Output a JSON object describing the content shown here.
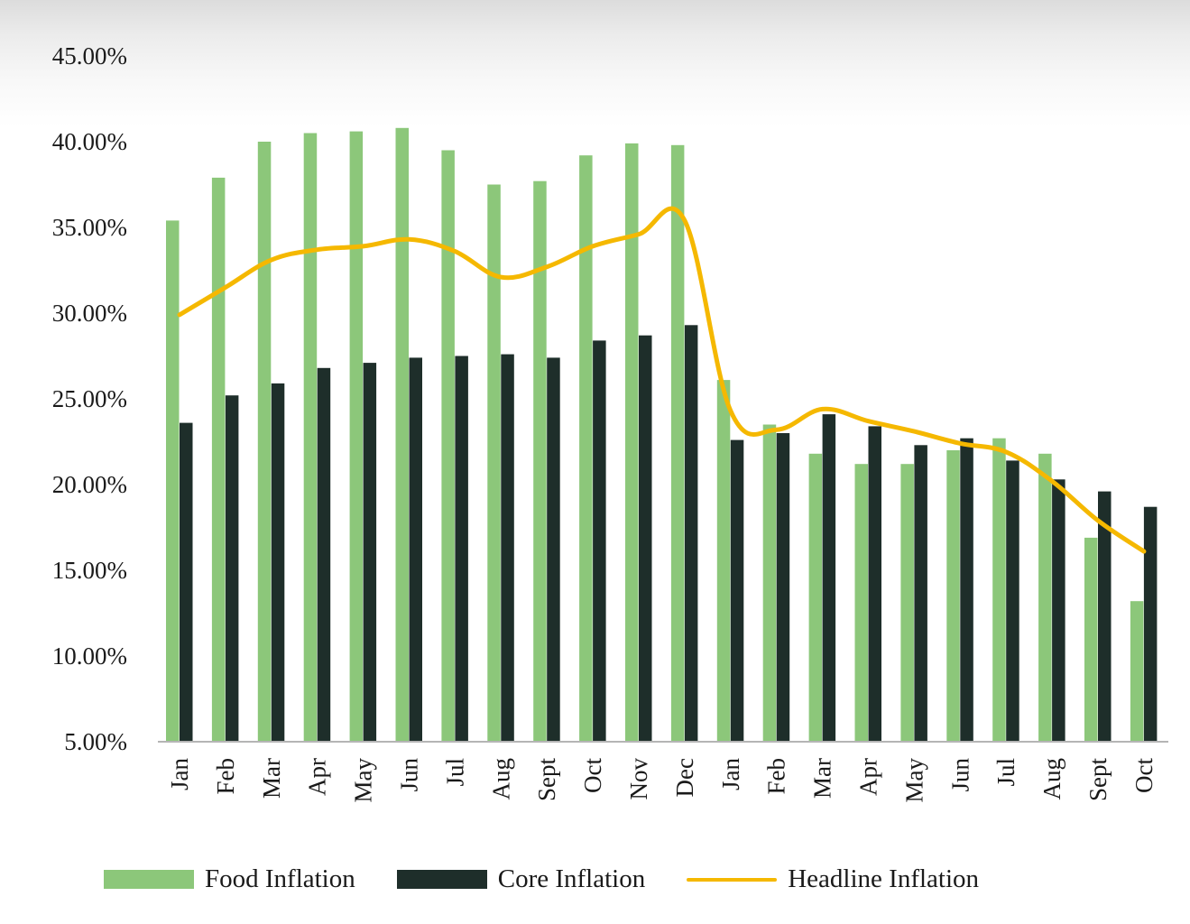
{
  "chart_data": {
    "type": "bar",
    "title": "",
    "xlabel": "",
    "ylabel": "",
    "ylim": [
      5,
      45
    ],
    "yticks": [
      "5.00%",
      "10.00%",
      "15.00%",
      "20.00%",
      "25.00%",
      "30.00%",
      "35.00%",
      "40.00%",
      "45.00%"
    ],
    "ytick_values": [
      5,
      10,
      15,
      20,
      25,
      30,
      35,
      40,
      45
    ],
    "grid": false,
    "legend_position": "bottom",
    "categories": [
      "Jan",
      "Feb",
      "Mar",
      "Apr",
      "May",
      "Jun",
      "Jul",
      "Aug",
      "Sept",
      "Oct",
      "Nov",
      "Dec",
      "Jan",
      "Feb",
      "Mar",
      "Apr",
      "May",
      "Jun",
      "Jul",
      "Aug",
      "Sept",
      "Oct"
    ],
    "series": [
      {
        "name": "Food Inflation",
        "type": "bar",
        "color": "#8cc77a",
        "values": [
          35.4,
          37.9,
          40.0,
          40.5,
          40.6,
          40.8,
          39.5,
          37.5,
          37.7,
          39.2,
          39.9,
          39.8,
          26.1,
          23.5,
          21.8,
          21.2,
          21.2,
          22.0,
          22.7,
          21.8,
          16.9,
          13.2
        ]
      },
      {
        "name": "Core Inflation",
        "type": "bar",
        "color": "#1e2e2a",
        "values": [
          23.6,
          25.2,
          25.9,
          26.8,
          27.1,
          27.4,
          27.5,
          27.6,
          27.4,
          28.4,
          28.7,
          29.3,
          22.6,
          23.0,
          24.1,
          23.4,
          22.3,
          22.7,
          21.4,
          20.3,
          19.6,
          18.7
        ]
      },
      {
        "name": "Headline Inflation",
        "type": "line",
        "color": "#f5b800",
        "values": [
          29.9,
          31.5,
          33.1,
          33.7,
          33.9,
          34.3,
          33.6,
          32.1,
          32.7,
          33.9,
          34.6,
          35.4,
          24.3,
          23.2,
          24.4,
          23.7,
          23.1,
          22.4,
          21.9,
          20.2,
          17.9,
          16.1
        ]
      }
    ]
  },
  "legend": {
    "items": [
      {
        "label": "Food Inflation",
        "kind": "bar",
        "color": "#8cc77a"
      },
      {
        "label": "Core Inflation",
        "kind": "bar",
        "color": "#1e2e2a"
      },
      {
        "label": "Headline Inflation",
        "kind": "line",
        "color": "#f5b800"
      }
    ]
  }
}
